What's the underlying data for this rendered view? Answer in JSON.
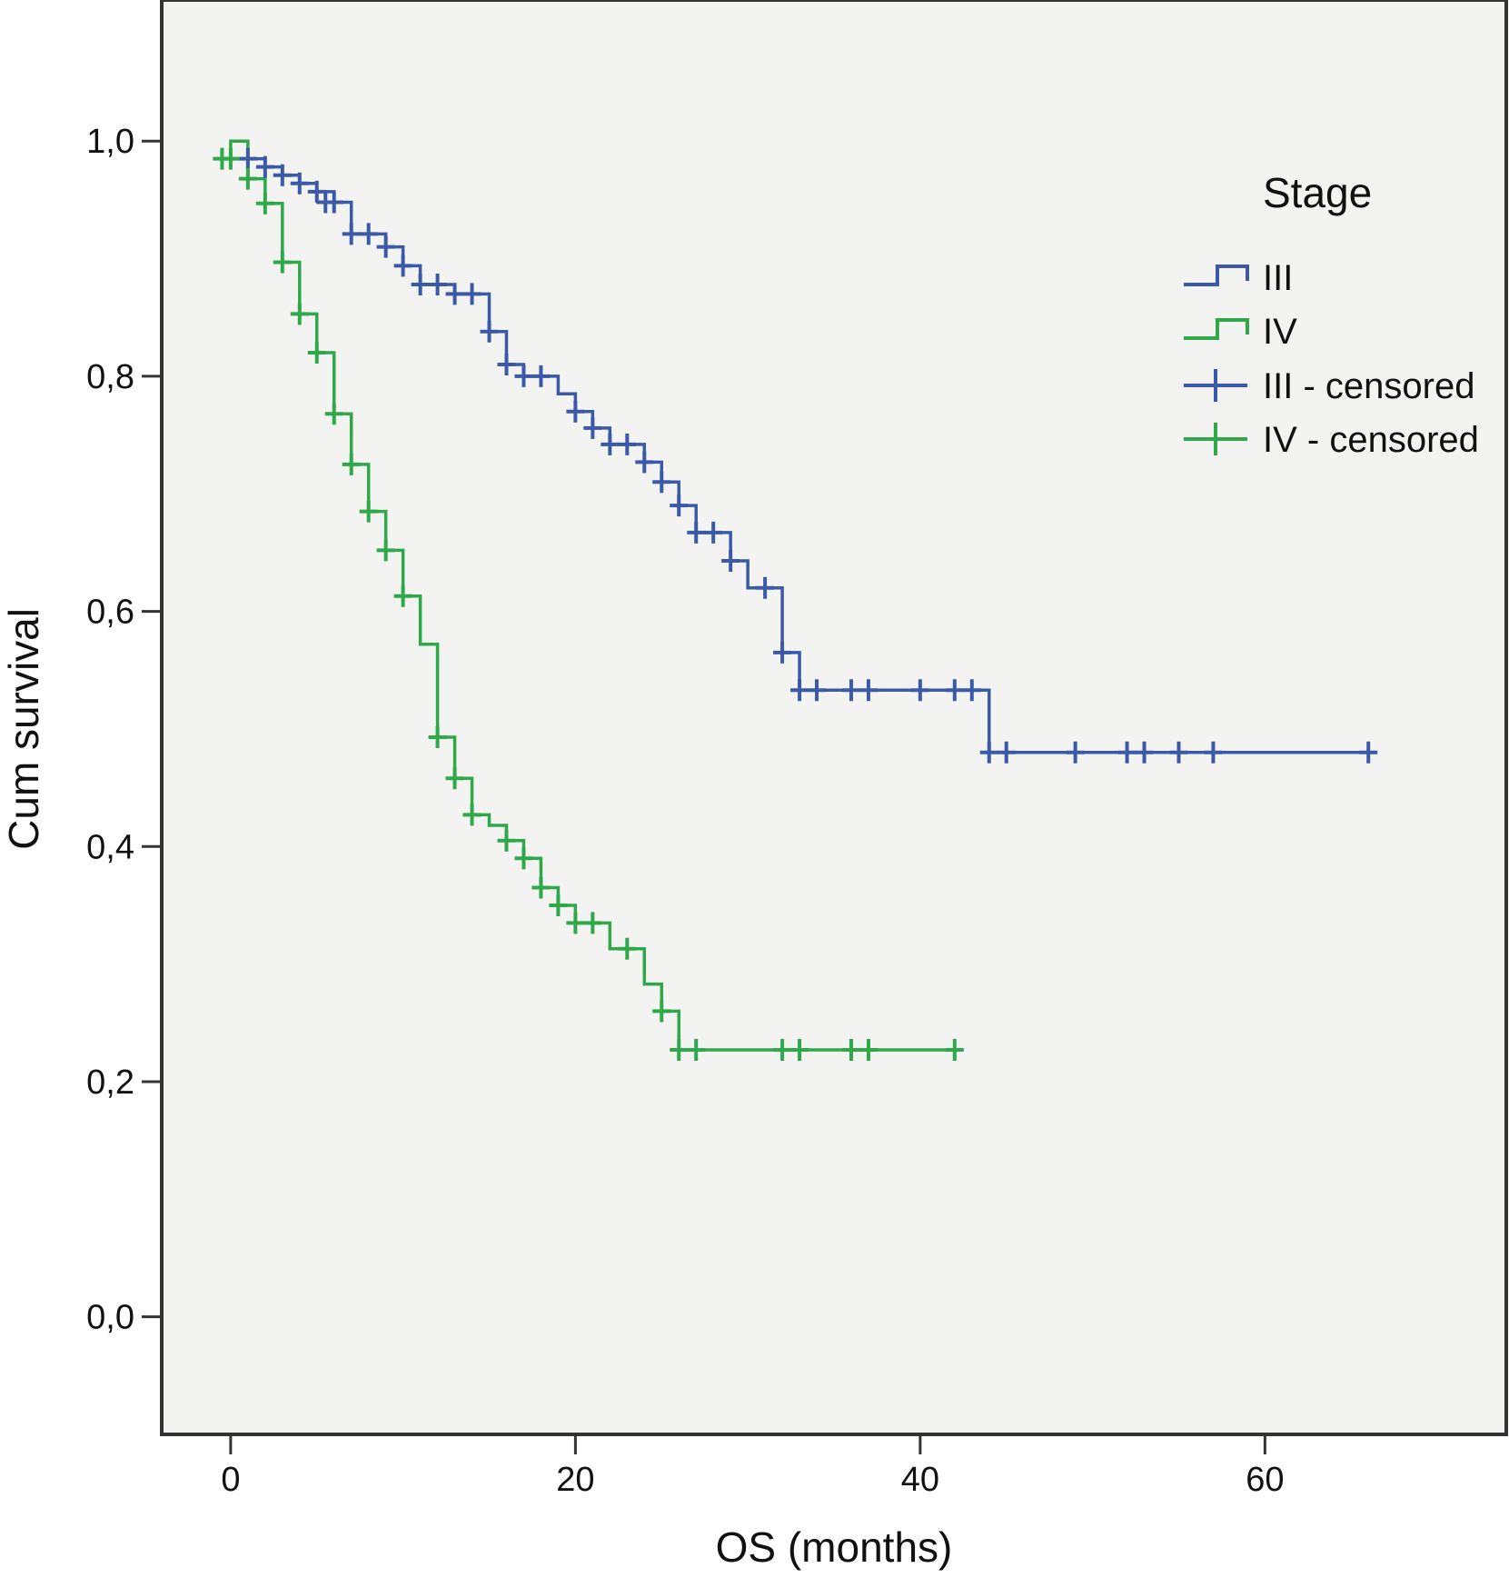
{
  "chart_data": {
    "type": "line",
    "subtype": "kaplan-meier step",
    "title": "",
    "xlabel": "OS (months)",
    "ylabel": "Cum survival",
    "xlim": [
      -4,
      74
    ],
    "ylim": [
      -0.1,
      1.12
    ],
    "x_ticks": [
      0,
      20,
      40,
      60
    ],
    "x_tick_labels": [
      "0",
      "20",
      "40",
      "60"
    ],
    "y_ticks": [
      0.0,
      0.2,
      0.4,
      0.6,
      0.8,
      1.0
    ],
    "y_tick_labels": [
      "0,0",
      "0,2",
      "0,4",
      "0,6",
      "0,8",
      "1,0"
    ],
    "grid": false,
    "legend_placement": "top-right",
    "legend": {
      "title": "Stage",
      "entries": [
        "III",
        "IV",
        "III - censored",
        "IV - censored"
      ]
    },
    "colors": {
      "III": "#3a5aa8",
      "IV": "#2fa84a",
      "plot_bg": "#f3f3f2",
      "frame": "#333333"
    },
    "series": [
      {
        "name": "III",
        "steps": [
          [
            -0.5,
            0.985
          ],
          [
            1,
            0.985
          ],
          [
            2,
            0.978
          ],
          [
            3,
            0.971
          ],
          [
            4,
            0.964
          ],
          [
            5,
            0.957
          ],
          [
            6,
            0.948
          ],
          [
            7,
            0.921
          ],
          [
            9,
            0.91
          ],
          [
            10,
            0.894
          ],
          [
            11,
            0.878
          ],
          [
            13,
            0.87
          ],
          [
            15,
            0.838
          ],
          [
            16,
            0.81
          ],
          [
            17,
            0.8
          ],
          [
            19,
            0.785
          ],
          [
            20,
            0.77
          ],
          [
            21,
            0.756
          ],
          [
            22,
            0.742
          ],
          [
            24,
            0.727
          ],
          [
            25,
            0.71
          ],
          [
            26,
            0.69
          ],
          [
            27,
            0.667
          ],
          [
            29,
            0.643
          ],
          [
            30,
            0.62
          ],
          [
            32,
            0.565
          ],
          [
            33,
            0.533
          ],
          [
            44,
            0.48
          ],
          [
            66,
            0.48
          ]
        ],
        "censored": [
          [
            1,
            0.985
          ],
          [
            2,
            0.978
          ],
          [
            3,
            0.971
          ],
          [
            4,
            0.964
          ],
          [
            5,
            0.957
          ],
          [
            5.5,
            0.948
          ],
          [
            6,
            0.948
          ],
          [
            7,
            0.921
          ],
          [
            8,
            0.921
          ],
          [
            9,
            0.91
          ],
          [
            10,
            0.894
          ],
          [
            11,
            0.878
          ],
          [
            12,
            0.878
          ],
          [
            13,
            0.87
          ],
          [
            14,
            0.87
          ],
          [
            15,
            0.838
          ],
          [
            16,
            0.81
          ],
          [
            17,
            0.8
          ],
          [
            18,
            0.8
          ],
          [
            20,
            0.77
          ],
          [
            21,
            0.756
          ],
          [
            22,
            0.742
          ],
          [
            23,
            0.742
          ],
          [
            24,
            0.727
          ],
          [
            25,
            0.71
          ],
          [
            26,
            0.69
          ],
          [
            27,
            0.667
          ],
          [
            28,
            0.667
          ],
          [
            29,
            0.643
          ],
          [
            31,
            0.62
          ],
          [
            32,
            0.565
          ],
          [
            33,
            0.533
          ],
          [
            34,
            0.533
          ],
          [
            36,
            0.533
          ],
          [
            37,
            0.533
          ],
          [
            40,
            0.533
          ],
          [
            42,
            0.533
          ],
          [
            43,
            0.533
          ],
          [
            44,
            0.48
          ],
          [
            45,
            0.48
          ],
          [
            49,
            0.48
          ],
          [
            52,
            0.48
          ],
          [
            53,
            0.48
          ],
          [
            55,
            0.48
          ],
          [
            57,
            0.48
          ],
          [
            66,
            0.48
          ]
        ]
      },
      {
        "name": "IV",
        "steps": [
          [
            -0.5,
            0.985
          ],
          [
            0,
            1.0
          ],
          [
            1,
            0.968
          ],
          [
            2,
            0.947
          ],
          [
            3,
            0.897
          ],
          [
            4,
            0.853
          ],
          [
            5,
            0.82
          ],
          [
            6,
            0.768
          ],
          [
            7,
            0.725
          ],
          [
            8,
            0.685
          ],
          [
            9,
            0.652
          ],
          [
            10,
            0.613
          ],
          [
            11,
            0.572
          ],
          [
            12,
            0.493
          ],
          [
            13,
            0.458
          ],
          [
            14,
            0.427
          ],
          [
            15,
            0.418
          ],
          [
            16,
            0.405
          ],
          [
            17,
            0.39
          ],
          [
            18,
            0.365
          ],
          [
            19,
            0.35
          ],
          [
            20,
            0.335
          ],
          [
            22,
            0.313
          ],
          [
            24,
            0.283
          ],
          [
            25,
            0.26
          ],
          [
            26,
            0.227
          ],
          [
            42,
            0.227
          ]
        ],
        "censored": [
          [
            -0.5,
            0.985
          ],
          [
            0,
            0.985
          ],
          [
            1,
            0.968
          ],
          [
            2,
            0.947
          ],
          [
            3,
            0.897
          ],
          [
            4,
            0.853
          ],
          [
            5,
            0.82
          ],
          [
            6,
            0.768
          ],
          [
            7,
            0.725
          ],
          [
            8,
            0.685
          ],
          [
            9,
            0.652
          ],
          [
            10,
            0.613
          ],
          [
            12,
            0.493
          ],
          [
            13,
            0.458
          ],
          [
            14,
            0.427
          ],
          [
            16,
            0.405
          ],
          [
            17,
            0.39
          ],
          [
            18,
            0.365
          ],
          [
            19,
            0.35
          ],
          [
            20,
            0.335
          ],
          [
            21,
            0.335
          ],
          [
            23,
            0.313
          ],
          [
            25,
            0.26
          ],
          [
            26,
            0.227
          ],
          [
            27,
            0.227
          ],
          [
            32,
            0.227
          ],
          [
            33,
            0.227
          ],
          [
            36,
            0.227
          ],
          [
            37,
            0.227
          ],
          [
            42,
            0.227
          ]
        ]
      }
    ]
  }
}
